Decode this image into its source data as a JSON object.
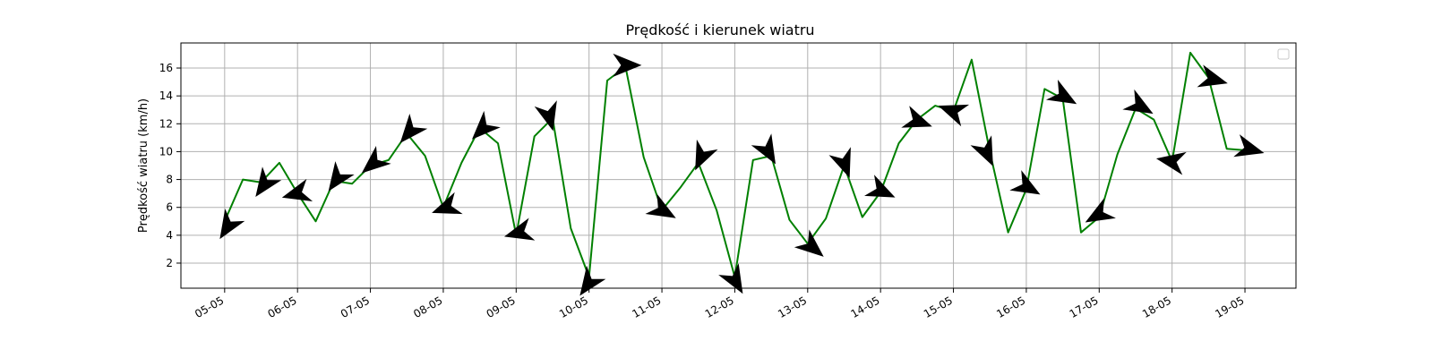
{
  "chart_data": {
    "type": "line",
    "title": "Prędkość i kierunek wiatru",
    "xlabel": "",
    "ylabel": "Prędkość wiatru (km/h)",
    "ylim": [
      0.2,
      17.8
    ],
    "yticks": [
      2,
      4,
      6,
      8,
      10,
      12,
      14,
      16
    ],
    "xlim": [
      4.4,
      19.7
    ],
    "xticks": [
      {
        "x": 5,
        "label": "05-05"
      },
      {
        "x": 6,
        "label": "06-05"
      },
      {
        "x": 7,
        "label": "07-05"
      },
      {
        "x": 8,
        "label": "08-05"
      },
      {
        "x": 9,
        "label": "09-05"
      },
      {
        "x": 10,
        "label": "10-05"
      },
      {
        "x": 11,
        "label": "11-05"
      },
      {
        "x": 12,
        "label": "12-05"
      },
      {
        "x": 13,
        "label": "13-05"
      },
      {
        "x": 14,
        "label": "14-05"
      },
      {
        "x": 15,
        "label": "15-05"
      },
      {
        "x": 16,
        "label": "16-05"
      },
      {
        "x": 17,
        "label": "17-05"
      },
      {
        "x": 18,
        "label": "18-05"
      },
      {
        "x": 19,
        "label": "19-05"
      }
    ],
    "grid": true,
    "legend": "upper right (empty)",
    "series": [
      {
        "color": "#008000",
        "points": [
          [
            5.0,
            5.0
          ],
          [
            5.25,
            8.0
          ],
          [
            5.5,
            7.8
          ],
          [
            5.75,
            9.2
          ],
          [
            6.0,
            7.0
          ],
          [
            6.25,
            5.0
          ],
          [
            6.5,
            7.9
          ],
          [
            6.75,
            7.7
          ],
          [
            7.0,
            9.0
          ],
          [
            7.25,
            9.4
          ],
          [
            7.5,
            11.3
          ],
          [
            7.75,
            9.7
          ],
          [
            8.0,
            6.0
          ],
          [
            8.25,
            9.2
          ],
          [
            8.5,
            11.7
          ],
          [
            8.75,
            10.6
          ],
          [
            9.0,
            4.0
          ],
          [
            9.25,
            11.1
          ],
          [
            9.5,
            12.4
          ],
          [
            9.75,
            4.5
          ],
          [
            10.0,
            1.0
          ],
          [
            10.25,
            15.1
          ],
          [
            10.5,
            16.1
          ],
          [
            10.75,
            9.6
          ],
          [
            11.0,
            5.8
          ],
          [
            11.25,
            7.4
          ],
          [
            11.5,
            9.2
          ],
          [
            11.75,
            5.8
          ],
          [
            12.0,
            1.0
          ],
          [
            12.25,
            9.4
          ],
          [
            12.5,
            9.7
          ],
          [
            12.75,
            5.1
          ],
          [
            13.0,
            3.4
          ],
          [
            13.25,
            5.2
          ],
          [
            13.5,
            9.0
          ],
          [
            13.75,
            5.3
          ],
          [
            14.0,
            7.1
          ],
          [
            14.25,
            10.6
          ],
          [
            14.5,
            12.3
          ],
          [
            14.75,
            13.3
          ],
          [
            15.0,
            12.9
          ],
          [
            15.25,
            16.6
          ],
          [
            15.5,
            10.0
          ],
          [
            15.75,
            4.2
          ],
          [
            16.0,
            7.3
          ],
          [
            16.25,
            14.5
          ],
          [
            16.5,
            13.8
          ],
          [
            16.75,
            4.2
          ],
          [
            17.0,
            5.3
          ],
          [
            17.25,
            9.8
          ],
          [
            17.5,
            13.1
          ],
          [
            17.75,
            12.3
          ],
          [
            18.0,
            9.3
          ],
          [
            18.25,
            17.1
          ],
          [
            18.5,
            15.3
          ],
          [
            18.75,
            10.2
          ],
          [
            19.0,
            10.1
          ]
        ]
      }
    ],
    "arrows": {
      "color": "#000000",
      "points": [
        {
          "x": 5.05,
          "y": 4.7,
          "dir": 238
        },
        {
          "x": 5.55,
          "y": 7.7,
          "dir": 235
        },
        {
          "x": 6.0,
          "y": 7.0,
          "dir": 195
        },
        {
          "x": 6.55,
          "y": 8.1,
          "dir": 235
        },
        {
          "x": 7.05,
          "y": 9.2,
          "dir": 220
        },
        {
          "x": 7.55,
          "y": 11.5,
          "dir": 230
        },
        {
          "x": 8.05,
          "y": 6.0,
          "dir": 200
        },
        {
          "x": 8.55,
          "y": 11.7,
          "dir": 225
        },
        {
          "x": 9.05,
          "y": 4.2,
          "dir": 195
        },
        {
          "x": 9.45,
          "y": 12.6,
          "dir": 285
        },
        {
          "x": 10.0,
          "y": 0.6,
          "dir": 235
        },
        {
          "x": 10.5,
          "y": 16.2,
          "dir": 0
        },
        {
          "x": 11.0,
          "y": 5.8,
          "dir": 330
        },
        {
          "x": 11.55,
          "y": 9.7,
          "dir": 245
        },
        {
          "x": 12.0,
          "y": 0.8,
          "dir": 300
        },
        {
          "x": 12.45,
          "y": 10.1,
          "dir": 300
        },
        {
          "x": 13.05,
          "y": 3.2,
          "dir": 320
        },
        {
          "x": 13.5,
          "y": 9.2,
          "dir": 290
        },
        {
          "x": 14.0,
          "y": 7.2,
          "dir": 335
        },
        {
          "x": 14.5,
          "y": 12.2,
          "dir": 340
        },
        {
          "x": 15.0,
          "y": 12.9,
          "dir": 160
        },
        {
          "x": 15.45,
          "y": 10.0,
          "dir": 295
        },
        {
          "x": 16.0,
          "y": 7.5,
          "dir": 330
        },
        {
          "x": 16.5,
          "y": 14.0,
          "dir": 330
        },
        {
          "x": 17.0,
          "y": 5.5,
          "dir": 210
        },
        {
          "x": 17.55,
          "y": 13.3,
          "dir": 330
        },
        {
          "x": 18.0,
          "y": 9.3,
          "dir": 170
        },
        {
          "x": 18.55,
          "y": 15.2,
          "dir": 345
        },
        {
          "x": 19.05,
          "y": 10.2,
          "dir": 345
        }
      ]
    }
  }
}
